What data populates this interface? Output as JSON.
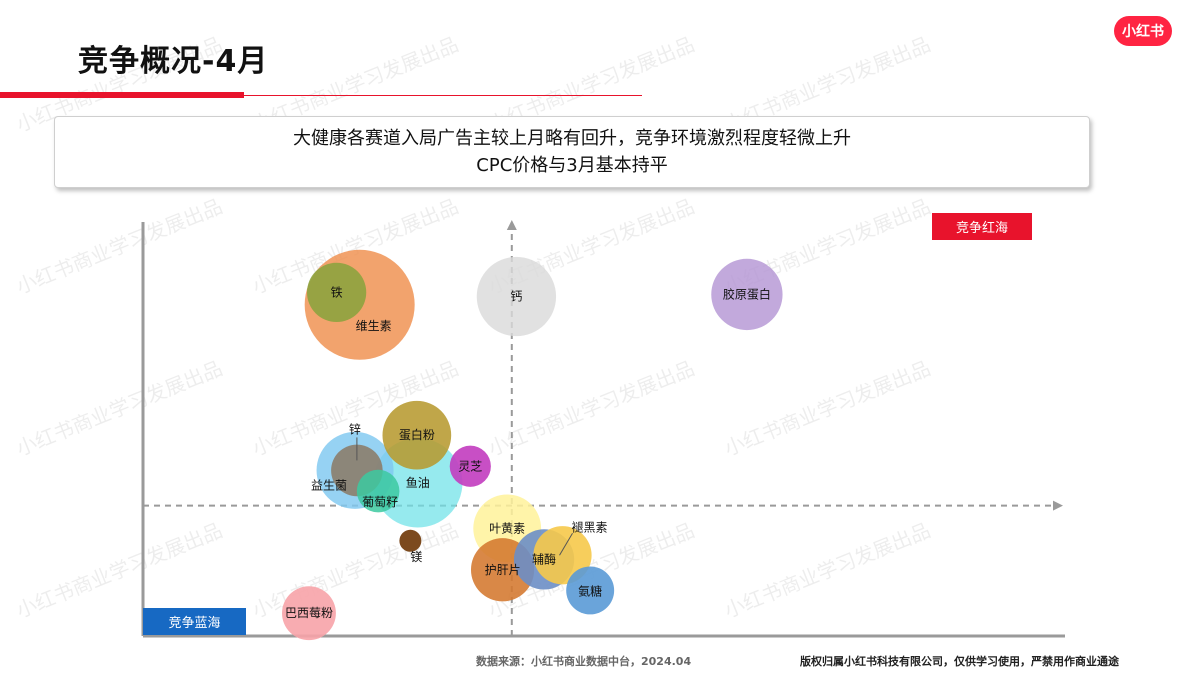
{
  "header": {
    "title": "竞争概况-4月",
    "logo_text": "小红书"
  },
  "summary": {
    "line1": "大健康各赛道入局广告主较上月略有回升，竞争环境激烈程度轻微上升",
    "line2": "CPC价格与3月基本持平"
  },
  "quadrant_labels": {
    "top_right": "竞争红海",
    "bottom_left": "竞争蓝海"
  },
  "footer": {
    "source": "数据来源：小红书商业数据中台，2024.04",
    "copyright": "版权归属小红书科技有限公司，仅供学习使用，严禁用作商业通途"
  },
  "watermark_text": "小红书商业学习发展出品",
  "colors": {
    "brand_red": "#e8132c",
    "blue": "#1769c3"
  },
  "chart_data": {
    "type": "scatter",
    "title": "",
    "xlabel": "",
    "ylabel": "",
    "x_range": [
      0,
      10
    ],
    "y_range": [
      0,
      10
    ],
    "midlines": {
      "x": 4.0,
      "y": 3.15
    },
    "grid": false,
    "points": [
      {
        "name": "维生素",
        "x": 2.35,
        "y": 8.0,
        "size": 1.0,
        "color": "#ef8c48",
        "opacity": 0.8
      },
      {
        "name": "铁",
        "x": 2.1,
        "y": 8.3,
        "size": 0.29,
        "color": "#8aa33e",
        "opacity": 0.88
      },
      {
        "name": "钙",
        "x": 4.05,
        "y": 8.2,
        "size": 0.52,
        "color": "#d9d9d9",
        "opacity": 0.8
      },
      {
        "name": "胶原蛋白",
        "x": 6.55,
        "y": 8.25,
        "size": 0.42,
        "color": "#b393d3",
        "opacity": 0.8
      },
      {
        "name": "蛋白粉",
        "x": 2.97,
        "y": 4.85,
        "size": 0.39,
        "color": "#b79a30",
        "opacity": 0.88
      },
      {
        "name": "益生菌",
        "x": 2.3,
        "y": 4.0,
        "size": 0.49,
        "color": "#7fc8f0",
        "opacity": 0.82
      },
      {
        "name": "锌",
        "x": 2.32,
        "y": 4.0,
        "size": 0.22,
        "color": "#8b7d6b",
        "opacity": 0.9
      },
      {
        "name": "鱼油",
        "x": 2.98,
        "y": 3.7,
        "size": 0.66,
        "color": "#6ee2e8",
        "opacity": 0.72
      },
      {
        "name": "葡萄籽",
        "x": 2.55,
        "y": 3.5,
        "size": 0.15,
        "color": "#3cc9a0",
        "opacity": 0.85
      },
      {
        "name": "灵芝",
        "x": 3.55,
        "y": 4.1,
        "size": 0.14,
        "color": "#c23cbf",
        "opacity": 0.9
      },
      {
        "name": "镁",
        "x": 2.9,
        "y": 2.3,
        "size": 0.04,
        "color": "#7c4a1e",
        "opacity": 1.0
      },
      {
        "name": "叶黄素",
        "x": 3.95,
        "y": 2.6,
        "size": 0.38,
        "color": "#fff29a",
        "opacity": 0.85
      },
      {
        "name": "护肝片",
        "x": 3.9,
        "y": 1.6,
        "size": 0.33,
        "color": "#d4782e",
        "opacity": 0.88
      },
      {
        "name": "褪黑素",
        "x": 4.55,
        "y": 1.95,
        "size": 0.28,
        "color": "#f6c94a",
        "opacity": 0.9
      },
      {
        "name": "辅酶",
        "x": 4.35,
        "y": 1.85,
        "size": 0.3,
        "color": "#6b8ec5",
        "opacity": 0.9
      },
      {
        "name": "氨糖",
        "x": 4.85,
        "y": 1.1,
        "size": 0.19,
        "color": "#5a9ad6",
        "opacity": 0.9
      },
      {
        "name": "巴西莓粉",
        "x": 1.8,
        "y": 0.55,
        "size": 0.24,
        "color": "#f7a3a8",
        "opacity": 0.9
      }
    ]
  }
}
